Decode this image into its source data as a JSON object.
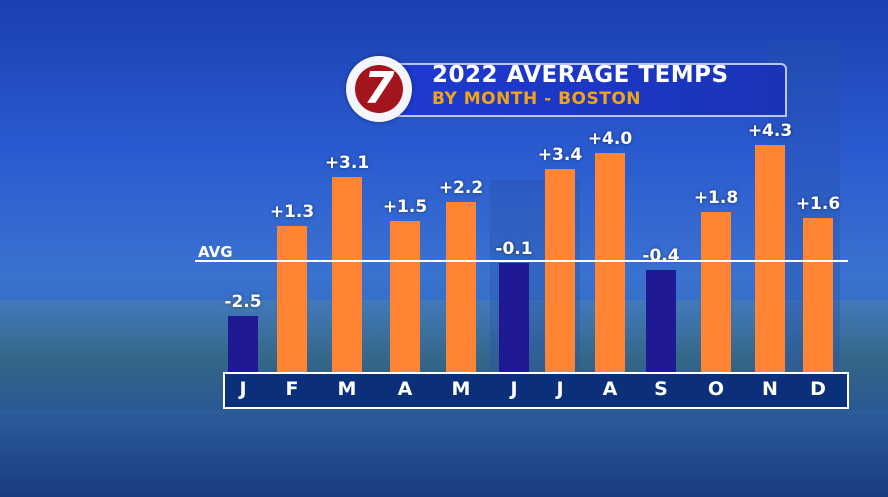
{
  "logo": {
    "text": "7"
  },
  "chart_data": {
    "type": "bar",
    "title": "2022 AVERAGE TEMPS",
    "subtitle": "BY MONTH - BOSTON",
    "reference_line": {
      "label": "AVG",
      "value": 0
    },
    "categories": [
      "J",
      "F",
      "M",
      "A",
      "M",
      "J",
      "J",
      "A",
      "S",
      "O",
      "N",
      "D"
    ],
    "values": [
      -2.5,
      1.3,
      3.1,
      1.5,
      2.2,
      -0.1,
      3.4,
      4.0,
      -0.4,
      1.8,
      4.3,
      1.6
    ],
    "value_labels": [
      "-2.5",
      "+1.3",
      "+3.1",
      "+1.5",
      "+2.2",
      "-0.1",
      "+3.4",
      "+4.0",
      "-0.4",
      "+1.8",
      "+4.3",
      "+1.6"
    ],
    "colors": {
      "positive": "#ff8534",
      "negative": "#1f1a94"
    },
    "xlabel": "",
    "ylabel": "",
    "grid": false
  }
}
